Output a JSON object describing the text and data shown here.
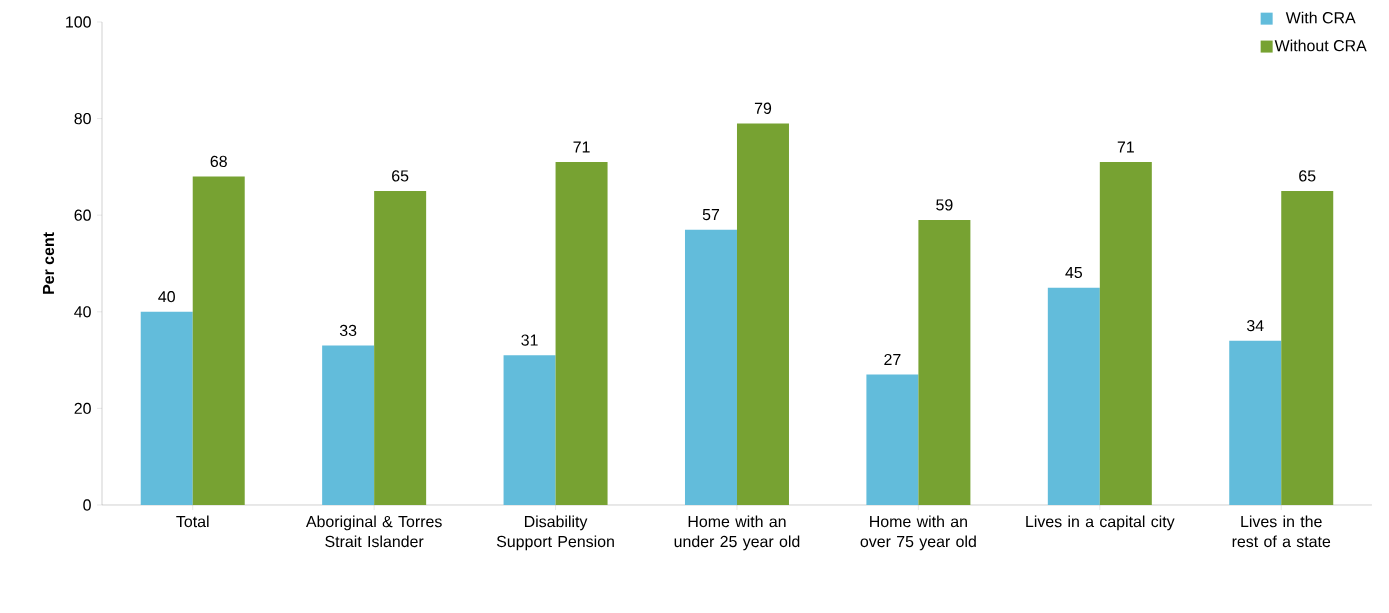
{
  "chart_data": {
    "type": "bar",
    "ylabel": "Per cent",
    "categories": [
      "Total",
      "Aboriginal & Torres Strait Islander",
      "Disability Support Pension",
      "Home with an under 25 year old",
      "Home with an over 75 year old",
      "Lives in a capital city",
      "Lives in the rest of a state"
    ],
    "series": [
      {
        "name": "With CRA",
        "color": "#62bcdb",
        "values": [
          40,
          33,
          31,
          57,
          27,
          45,
          34
        ]
      },
      {
        "name": "Without CRA",
        "color": "#77a232",
        "values": [
          68,
          65,
          71,
          79,
          59,
          71,
          65
        ]
      }
    ],
    "ylim": [
      0,
      100
    ],
    "yticks": [
      0,
      20,
      40,
      60,
      80,
      100
    ],
    "data_labels": true,
    "legend": "top right"
  }
}
